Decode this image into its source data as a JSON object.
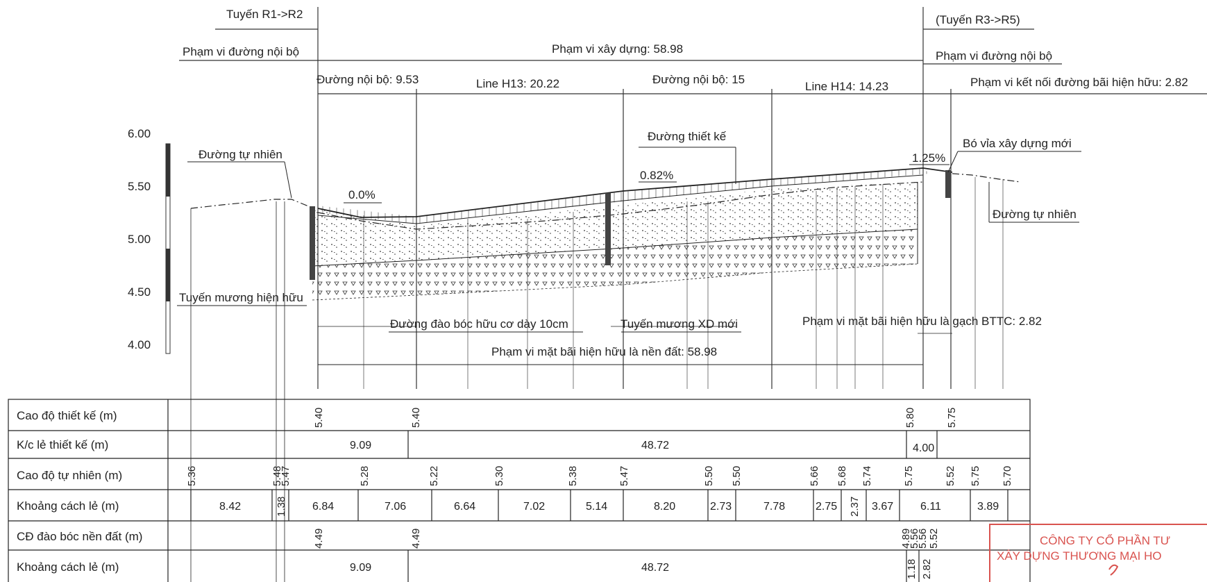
{
  "ranges": {
    "route_left": "Tuyến R1->R2",
    "route_right": "(Tuyến R3->R5)",
    "internal_road_left": "Phạm vi đường nội bộ",
    "internal_road_right": "Phạm vi đường nội bộ",
    "construction_range": "Phạm vi xây dựng: 58.98",
    "connection_range": "Phạm vi kết nối đường bãi hiện hữu: 2.82"
  },
  "segments": {
    "road_953": "Đường nội bộ: 9.53",
    "line_h13": "Line H13: 20.22",
    "road_15": "Đường nội bộ: 15",
    "line_h14": "Line H14: 14.23"
  },
  "annotations": {
    "natural_left": "Đường tự nhiên",
    "natural_right": "Đường tự nhiên",
    "design_road": "Đường thiết kế",
    "slope_0": "0.0%",
    "slope_082": "0.82%",
    "slope_125": "1.25%",
    "new_curb": "Bó vỉa xây dựng mới",
    "existing_ditch": "Tuyến mương hiện hữu",
    "stripping": "Đường đào bóc hữu cơ dày 10cm",
    "new_ditch": "Tuyến mương XD mới",
    "earth_surface": "Phạm vi mặt bãi hiện hữu là nền đất: 58.98",
    "brick_surface": "Phạm vi mặt bãi hiện hữu là gạch BTTC: 2.82"
  },
  "scale_labels": [
    "6.00",
    "5.50",
    "5.00",
    "4.50",
    "4.00"
  ],
  "table": {
    "rows": [
      "Cao độ thiết kế (m)",
      "K/c lẻ thiết kế (m)",
      "Cao độ tự nhiên (m)",
      "Khoảng cách lẻ (m)",
      "CĐ đào bóc nền đất (m)",
      "Khoảng cách lẻ (m)"
    ],
    "design_elev": [
      "5.40",
      "5.40",
      "5.80",
      "5.75"
    ],
    "design_dist": [
      "9.09",
      "48.72",
      "4.00"
    ],
    "natural_elev": [
      "5.36",
      "5.48",
      "5.47",
      "5.28",
      "5.22",
      "5.30",
      "5.38",
      "5.47",
      "5.50",
      "5.50",
      "5.66",
      "5.68",
      "5.74",
      "5.75",
      "5.52",
      "5.75",
      "5.70"
    ],
    "natural_dist": [
      "8.42",
      "1.38",
      "6.84",
      "7.06",
      "6.64",
      "7.02",
      "5.14",
      "8.20",
      "2.73",
      "7.78",
      "2.75",
      "2.37",
      "3.67",
      "6.11",
      "3.89"
    ],
    "strip_elev": [
      "4.49",
      "4.49",
      "4.89",
      "5.56",
      "5.56",
      "5.52"
    ],
    "strip_dist": [
      "9.09",
      "48.72",
      "1.18",
      "2.82"
    ]
  },
  "stamp": {
    "line1": "CÔNG TY CỔ PHẦN TƯ",
    "line2": "XÂY DỰNG THƯƠNG MẠI HO"
  },
  "colors": {
    "ink": "#222222",
    "stamp": "#d9534f"
  }
}
